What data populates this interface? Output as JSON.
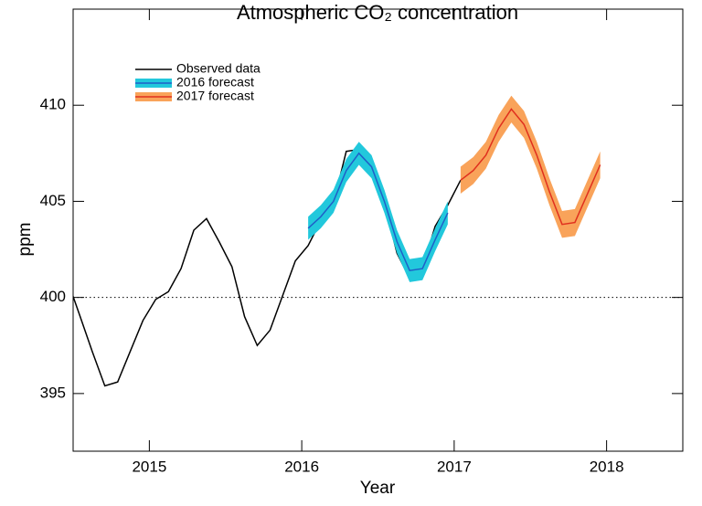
{
  "chart_data": {
    "type": "line",
    "title": "Atmospheric CO₂ concentration",
    "xlabel": "Year",
    "ylabel": "ppm",
    "xlim": [
      2014.5,
      2018.5
    ],
    "xticks": [
      2015,
      2016,
      2017,
      2018
    ],
    "ylim": [
      392,
      415
    ],
    "yticks": [
      395,
      400,
      405,
      410
    ],
    "hline": 400,
    "legend": "upper left",
    "series": [
      {
        "name": "Observed data",
        "color": "#000000",
        "x": [
          2014.458,
          2014.542,
          2014.625,
          2014.708,
          2014.792,
          2014.875,
          2014.958,
          2015.042,
          2015.125,
          2015.208,
          2015.292,
          2015.375,
          2015.458,
          2015.542,
          2015.625,
          2015.708,
          2015.792,
          2015.875,
          2015.958,
          2016.042,
          2016.125,
          2016.208,
          2016.292,
          2016.375,
          2016.458,
          2016.542,
          2016.625,
          2016.708,
          2016.792,
          2016.875,
          2016.958,
          2017.042
        ],
        "values": [
          401.0,
          399.1,
          397.2,
          395.4,
          395.6,
          397.2,
          398.8,
          399.9,
          400.3,
          401.5,
          403.5,
          404.1,
          402.9,
          401.6,
          399.0,
          397.5,
          398.3,
          400.1,
          401.9,
          402.7,
          404.0,
          404.9,
          407.6,
          407.7,
          407.0,
          404.9,
          402.3,
          401.0,
          401.5,
          403.7,
          404.8,
          406.1
        ]
      },
      {
        "name": "2016 forecast",
        "color": "#1f5fc8",
        "band_color": "#22c8dc",
        "x": [
          2016.042,
          2016.125,
          2016.208,
          2016.292,
          2016.375,
          2016.458,
          2016.542,
          2016.625,
          2016.708,
          2016.792,
          2016.875,
          2016.958
        ],
        "values": [
          403.6,
          404.2,
          405.0,
          406.6,
          407.5,
          406.8,
          405.0,
          402.9,
          401.4,
          401.5,
          403.0,
          404.4
        ],
        "lower": [
          403.0,
          403.6,
          404.4,
          406.0,
          406.9,
          406.2,
          404.4,
          402.3,
          400.8,
          400.9,
          402.4,
          403.8
        ],
        "upper": [
          404.2,
          404.8,
          405.6,
          407.2,
          408.1,
          407.4,
          405.6,
          403.5,
          402.0,
          402.1,
          403.6,
          405.0
        ]
      },
      {
        "name": "2017 forecast",
        "color": "#e0301e",
        "band_color": "#f9a35a",
        "x": [
          2017.042,
          2017.125,
          2017.208,
          2017.292,
          2017.375,
          2017.458,
          2017.542,
          2017.625,
          2017.708,
          2017.792,
          2017.875,
          2017.958
        ],
        "values": [
          406.1,
          406.6,
          407.4,
          408.8,
          409.8,
          409.0,
          407.4,
          405.5,
          403.8,
          403.9,
          405.4,
          406.9
        ],
        "lower": [
          405.4,
          405.9,
          406.7,
          408.1,
          409.1,
          408.3,
          406.7,
          404.8,
          403.1,
          403.2,
          404.7,
          406.2
        ],
        "upper": [
          406.8,
          407.3,
          408.1,
          409.5,
          410.5,
          409.7,
          408.1,
          406.2,
          404.5,
          404.6,
          406.1,
          407.6
        ]
      }
    ]
  }
}
